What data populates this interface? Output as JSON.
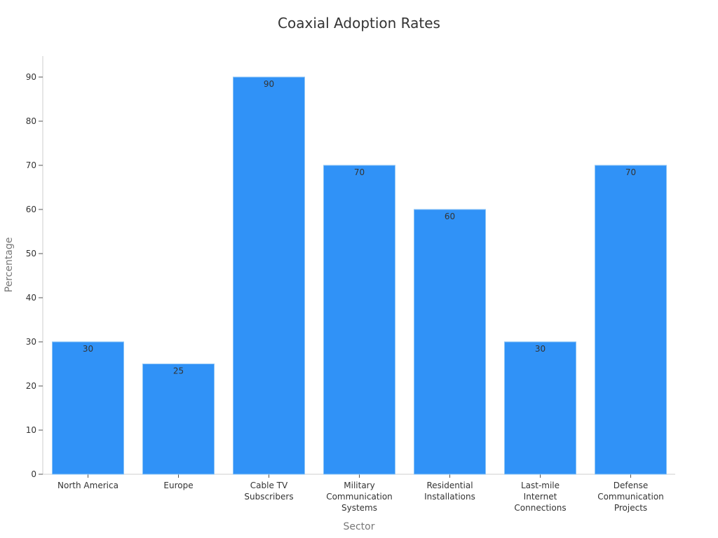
{
  "chart_data": {
    "type": "bar",
    "title": "Coaxial Adoption Rates",
    "xlabel": "Sector",
    "ylabel": "Percentage",
    "categories": [
      "North America",
      "Europe",
      "Cable TV Subscribers",
      "Military Communication Systems",
      "Residential Installations",
      "Last-mile Internet Connections",
      "Defense Communication Projects"
    ],
    "category_lines": [
      [
        "North America"
      ],
      [
        "Europe"
      ],
      [
        "Cable TV",
        "Subscribers"
      ],
      [
        "Military",
        "Communication",
        "Systems"
      ],
      [
        "Residential",
        "Installations"
      ],
      [
        "Last-mile",
        "Internet",
        "Connections"
      ],
      [
        "Defense",
        "Communication",
        "Projects"
      ]
    ],
    "values": [
      30,
      25,
      90,
      70,
      60,
      30,
      70
    ],
    "data_labels": [
      "30",
      "25",
      "90",
      "70",
      "60",
      "30",
      "70"
    ],
    "ylim": [
      0,
      95
    ],
    "yticks": [
      0,
      10,
      20,
      30,
      40,
      50,
      60,
      70,
      80,
      90
    ],
    "grid": false,
    "legend": null,
    "bar_color": "#3092f7"
  }
}
